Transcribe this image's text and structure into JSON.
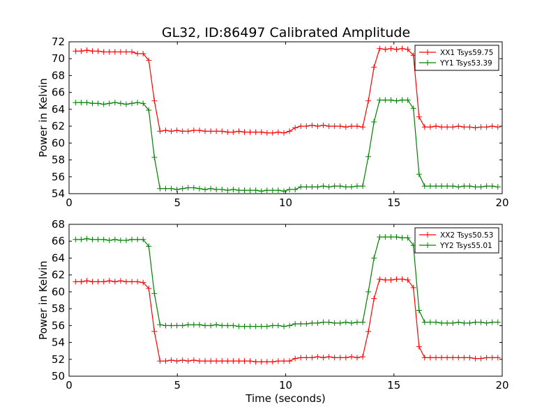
{
  "figure": {
    "title": "GL32, ID:86497 Calibrated Amplitude"
  },
  "colors": {
    "xx": "#ff0000",
    "yy": "#008000",
    "axes": "#000000",
    "background": "#ffffff"
  },
  "chart_data": [
    {
      "type": "line",
      "title": "GL32, ID:86497 Calibrated Amplitude",
      "xlabel": "",
      "ylabel": "Power in Kelvin",
      "xlim": [
        0,
        20
      ],
      "ylim": [
        54,
        72
      ],
      "xticks": [
        0,
        5,
        10,
        15,
        20
      ],
      "yticks": [
        54,
        56,
        58,
        60,
        62,
        64,
        66,
        68,
        70,
        72
      ],
      "grid": false,
      "legend": "top-right",
      "x": [
        0.3,
        0.56,
        0.82,
        1.08,
        1.34,
        1.6,
        1.86,
        2.12,
        2.38,
        2.64,
        2.9,
        3.16,
        3.42,
        3.68,
        3.94,
        4.2,
        4.46,
        4.72,
        4.98,
        5.24,
        5.5,
        5.76,
        6.02,
        6.28,
        6.54,
        6.8,
        7.06,
        7.32,
        7.58,
        7.84,
        8.1,
        8.36,
        8.62,
        8.88,
        9.14,
        9.4,
        9.66,
        9.92,
        10.18,
        10.44,
        10.7,
        10.96,
        11.22,
        11.48,
        11.74,
        12.0,
        12.26,
        12.52,
        12.78,
        13.04,
        13.3,
        13.56,
        13.82,
        14.08,
        14.34,
        14.6,
        14.86,
        15.12,
        15.38,
        15.64,
        15.9,
        16.16,
        16.42,
        16.68,
        16.94,
        17.2,
        17.46,
        17.72,
        17.98,
        18.24,
        18.5,
        18.76,
        19.02,
        19.28,
        19.54,
        19.8
      ],
      "series": [
        {
          "name": "XX1 Tsys59.75",
          "color": "#ff0000",
          "values": [
            70.9,
            70.9,
            71.0,
            70.9,
            70.9,
            70.8,
            70.8,
            70.8,
            70.8,
            70.8,
            70.8,
            70.6,
            70.6,
            69.8,
            65.0,
            61.4,
            61.5,
            61.4,
            61.5,
            61.4,
            61.4,
            61.5,
            61.5,
            61.4,
            61.4,
            61.4,
            61.4,
            61.3,
            61.3,
            61.4,
            61.3,
            61.3,
            61.3,
            61.3,
            61.2,
            61.2,
            61.3,
            61.2,
            61.4,
            61.8,
            62.0,
            62.0,
            62.1,
            62.0,
            62.1,
            62.0,
            62.0,
            62.0,
            61.9,
            62.0,
            62.0,
            61.9,
            65.0,
            69.0,
            71.2,
            71.1,
            71.2,
            71.1,
            71.2,
            71.1,
            70.4,
            63.1,
            61.9,
            61.9,
            62.0,
            61.9,
            61.9,
            61.9,
            62.0,
            61.9,
            61.9,
            61.8,
            61.9,
            61.9,
            62.0,
            61.9
          ]
        },
        {
          "name": "YY1 Tsys53.39",
          "color": "#008000",
          "values": [
            64.8,
            64.8,
            64.8,
            64.7,
            64.7,
            64.6,
            64.7,
            64.8,
            64.7,
            64.6,
            64.7,
            64.8,
            64.7,
            63.9,
            58.3,
            54.6,
            54.6,
            54.6,
            54.5,
            54.6,
            54.7,
            54.7,
            54.6,
            54.5,
            54.6,
            54.5,
            54.5,
            54.4,
            54.5,
            54.4,
            54.4,
            54.4,
            54.4,
            54.3,
            54.4,
            54.4,
            54.4,
            54.3,
            54.5,
            54.5,
            54.8,
            54.8,
            54.8,
            54.8,
            54.9,
            54.8,
            54.9,
            54.9,
            54.8,
            54.8,
            54.9,
            54.9,
            58.4,
            62.5,
            65.1,
            65.1,
            65.1,
            65.0,
            65.1,
            65.1,
            64.1,
            56.3,
            54.9,
            54.9,
            54.9,
            54.9,
            54.9,
            54.9,
            54.8,
            54.9,
            54.9,
            54.8,
            54.8,
            54.9,
            54.9,
            54.8
          ]
        }
      ]
    },
    {
      "type": "line",
      "title": "",
      "xlabel": "Time (seconds)",
      "ylabel": "Power in Kelvin",
      "xlim": [
        0,
        20
      ],
      "ylim": [
        50,
        68
      ],
      "xticks": [
        0,
        5,
        10,
        15,
        20
      ],
      "yticks": [
        50,
        52,
        54,
        56,
        58,
        60,
        62,
        64,
        66,
        68
      ],
      "grid": false,
      "legend": "top-right",
      "x": [
        0.3,
        0.56,
        0.82,
        1.08,
        1.34,
        1.6,
        1.86,
        2.12,
        2.38,
        2.64,
        2.9,
        3.16,
        3.42,
        3.68,
        3.94,
        4.2,
        4.46,
        4.72,
        4.98,
        5.24,
        5.5,
        5.76,
        6.02,
        6.28,
        6.54,
        6.8,
        7.06,
        7.32,
        7.58,
        7.84,
        8.1,
        8.36,
        8.62,
        8.88,
        9.14,
        9.4,
        9.66,
        9.92,
        10.18,
        10.44,
        10.7,
        10.96,
        11.22,
        11.48,
        11.74,
        12.0,
        12.26,
        12.52,
        12.78,
        13.04,
        13.3,
        13.56,
        13.82,
        14.08,
        14.34,
        14.6,
        14.86,
        15.12,
        15.38,
        15.64,
        15.9,
        16.16,
        16.42,
        16.68,
        16.94,
        17.2,
        17.46,
        17.72,
        17.98,
        18.24,
        18.5,
        18.76,
        19.02,
        19.28,
        19.54,
        19.8
      ],
      "series": [
        {
          "name": "XX2 Tsys50.53",
          "color": "#ff0000",
          "values": [
            61.2,
            61.2,
            61.3,
            61.2,
            61.2,
            61.2,
            61.3,
            61.2,
            61.3,
            61.2,
            61.2,
            61.2,
            61.1,
            60.4,
            55.3,
            51.8,
            51.8,
            51.9,
            51.8,
            51.9,
            51.8,
            51.9,
            51.8,
            51.8,
            51.8,
            51.8,
            51.8,
            51.8,
            51.8,
            51.8,
            51.8,
            51.8,
            51.7,
            51.7,
            51.7,
            51.7,
            51.8,
            51.8,
            51.8,
            52.1,
            52.2,
            52.2,
            52.2,
            52.3,
            52.2,
            52.3,
            52.2,
            52.2,
            52.2,
            52.3,
            52.2,
            52.3,
            55.3,
            59.2,
            61.5,
            61.4,
            61.4,
            61.5,
            61.5,
            61.4,
            60.5,
            53.5,
            52.2,
            52.2,
            52.2,
            52.2,
            52.2,
            52.2,
            52.2,
            52.2,
            52.2,
            52.1,
            52.1,
            52.2,
            52.2,
            52.2
          ]
        },
        {
          "name": "YY2 Tsys55.01",
          "color": "#008000",
          "values": [
            66.2,
            66.2,
            66.3,
            66.2,
            66.2,
            66.2,
            66.1,
            66.2,
            66.1,
            66.1,
            66.2,
            66.2,
            66.2,
            65.4,
            59.8,
            56.1,
            56.0,
            56.0,
            56.0,
            56.0,
            56.1,
            56.1,
            56.1,
            56.0,
            56.0,
            56.1,
            56.0,
            56.0,
            56.0,
            55.9,
            55.9,
            55.9,
            55.9,
            55.9,
            55.9,
            56.0,
            56.0,
            55.9,
            56.0,
            56.2,
            56.2,
            56.2,
            56.3,
            56.3,
            56.4,
            56.4,
            56.3,
            56.3,
            56.4,
            56.3,
            56.4,
            56.4,
            60.0,
            64.0,
            66.5,
            66.5,
            66.5,
            66.5,
            66.4,
            66.4,
            65.5,
            57.8,
            56.4,
            56.4,
            56.4,
            56.3,
            56.3,
            56.3,
            56.4,
            56.3,
            56.3,
            56.4,
            56.4,
            56.3,
            56.4,
            56.4
          ]
        }
      ]
    }
  ]
}
